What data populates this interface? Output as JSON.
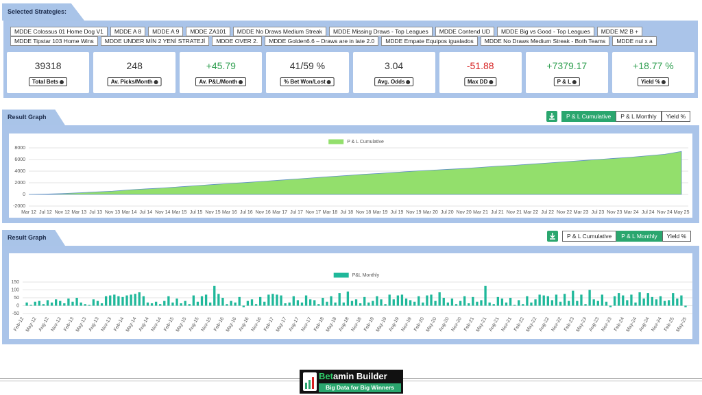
{
  "selected_strategies": {
    "title": "Selected Strategies:",
    "tag_rows": [
      [
        "MDDE Colossus 01 Home Dog V1",
        "MDDE A 8",
        "MDDE A 9",
        "MDDE ZA101",
        "MDDE No Draws Medium Streak",
        "MDDE Missing Draws - Top Leagues",
        "MDDE Contend UD",
        "MDDE Big vs Good - Top Leagues",
        "MDDE M2 B +"
      ],
      [
        "MDDE Tipstar 103 Home Wins",
        "MDDE UNDER MİN 2 YENİ STRATEJİ",
        "MDDE OVER 2.",
        "MDDE Golden6.6 – Draws are in late 2.0",
        "MDDE Empate Equipos igualados",
        "MDDE No Draws Medium Streak - Both Teams",
        "MDDE nul x a"
      ]
    ],
    "stats": [
      {
        "value": "39318",
        "label": "Total Bets",
        "color": "#333333"
      },
      {
        "value": "248",
        "label": "Av. Picks/Month",
        "color": "#333333"
      },
      {
        "value": "+45.79",
        "label": "Av. P&L/Month",
        "color": "#2e9e4f"
      },
      {
        "value": "41/59 %",
        "label": "% Bet Won/Lost",
        "color": "#333333"
      },
      {
        "value": "3.04",
        "label": "Avg. Odds",
        "color": "#333333"
      },
      {
        "value": "-51.88",
        "label": "Max DD",
        "color": "#d62020"
      },
      {
        "value": "+7379.17",
        "label": "P & L",
        "color": "#2e9e4f"
      },
      {
        "value": "+18.77 %",
        "label": "Yield %",
        "color": "#2e9e4f"
      }
    ]
  },
  "panels": [
    {
      "title": "Result Graph",
      "buttons": [
        {
          "text": "P & L Cumulative",
          "active": true
        },
        {
          "text": "P & L Monthly",
          "active": false
        },
        {
          "text": "Yield %",
          "active": false
        }
      ]
    },
    {
      "title": "Result Graph",
      "buttons": [
        {
          "text": "P & L Cumulative",
          "active": false
        },
        {
          "text": "P & L Monthly",
          "active": true
        },
        {
          "text": "Yield %",
          "active": false
        }
      ]
    }
  ],
  "chart_data": [
    {
      "type": "area",
      "categories": [
        "Mar 12",
        "Jul 12",
        "Nov 12",
        "Mar 13",
        "Jul 13",
        "Nov 13",
        "Mar 14",
        "Jul 14",
        "Nov 14",
        "Mar 15",
        "Jul 15",
        "Nov 15",
        "Mar 16",
        "Jul 16",
        "Nov 16",
        "Mar 17",
        "Jul 17",
        "Nov 17",
        "Mar 18",
        "Jul 18",
        "Nov 18",
        "Mar 19",
        "Jul 19",
        "Nov 19",
        "Mar 20",
        "Jul 20",
        "Nov 20",
        "Mar 21",
        "Jul 21",
        "Nov 21",
        "Mar 22",
        "Jul 22",
        "Nov 22",
        "Mar 23",
        "Jul 23",
        "Nov 23",
        "Mar 24",
        "Jul 24",
        "Nov 24",
        "May 25"
      ],
      "series": [
        {
          "name": "P & L Cumulative",
          "color": "#93df6c",
          "values": [
            0,
            60,
            150,
            280,
            420,
            560,
            780,
            950,
            1100,
            1300,
            1500,
            1700,
            1880,
            2050,
            2250,
            2450,
            2650,
            2850,
            3050,
            3250,
            3450,
            3620,
            3800,
            4000,
            4150,
            4300,
            4450,
            4650,
            4850,
            5000,
            5200,
            5400,
            5600,
            5800,
            6000,
            6200,
            6400,
            6650,
            6900,
            7379
          ]
        }
      ],
      "ylim": [
        -2000,
        8000
      ],
      "yticks": [
        -2000,
        0,
        2000,
        4000,
        6000,
        8000
      ],
      "grid": true
    },
    {
      "type": "bar",
      "categories": [
        "Feb-12",
        null,
        null,
        "May-12",
        null,
        null,
        "Aug-12",
        null,
        null,
        "Nov-12",
        null,
        null,
        "Feb-13",
        null,
        null,
        "May-13",
        null,
        null,
        "Aug-13",
        null,
        null,
        "Nov-13",
        null,
        null,
        "Feb-14",
        null,
        null,
        "May-14",
        null,
        null,
        "Aug-14",
        null,
        null,
        "Nov-14",
        null,
        null,
        "Feb-15",
        null,
        null,
        "May-15",
        null,
        null,
        "Aug-15",
        null,
        null,
        "Nov-15",
        null,
        null,
        "Feb-16",
        null,
        null,
        "May-16",
        null,
        null,
        "Aug-16",
        null,
        null,
        "Nov-16",
        null,
        null,
        "Feb-17",
        null,
        null,
        "May-17",
        null,
        null,
        "Aug-17",
        null,
        null,
        "Nov-17",
        null,
        null,
        "Feb-18",
        null,
        null,
        "May-18",
        null,
        null,
        "Aug-18",
        null,
        null,
        "Nov-18",
        null,
        null,
        "Feb-19",
        null,
        null,
        "May-19",
        null,
        null,
        "Aug-19",
        null,
        null,
        "Nov-19",
        null,
        null,
        "Feb-20",
        null,
        null,
        "May-20",
        null,
        null,
        "Aug-20",
        null,
        null,
        "Nov-20",
        null,
        null,
        "Feb-21",
        null,
        null,
        "May-21",
        null,
        null,
        "Aug-21",
        null,
        null,
        "Nov-21",
        null,
        null,
        "Feb-22",
        null,
        null,
        "May-22",
        null,
        null,
        "Aug-22",
        null,
        null,
        "Nov-22",
        null,
        null,
        "Feb-23",
        null,
        null,
        "May-23",
        null,
        null,
        "Aug-23",
        null,
        null,
        "Nov-23",
        null,
        null,
        "Feb-24",
        null,
        null,
        "May-24",
        null,
        null,
        "Aug-24",
        null,
        null,
        "Nov-24",
        null,
        null,
        "Feb-25",
        null,
        null,
        "May-25"
      ],
      "series": [
        {
          "name": "P&L Monthly",
          "color": "#1fb89a",
          "values": [
            0,
            20,
            5,
            25,
            30,
            10,
            35,
            20,
            40,
            30,
            15,
            45,
            25,
            50,
            20,
            10,
            5,
            40,
            30,
            15,
            60,
            65,
            70,
            60,
            55,
            65,
            70,
            75,
            85,
            60,
            20,
            15,
            25,
            10,
            30,
            60,
            20,
            45,
            15,
            30,
            10,
            65,
            25,
            60,
            70,
            20,
            125,
            75,
            50,
            10,
            30,
            20,
            55,
            -10,
            30,
            40,
            10,
            55,
            25,
            70,
            75,
            70,
            65,
            15,
            20,
            60,
            35,
            20,
            65,
            40,
            35,
            10,
            50,
            25,
            60,
            20,
            80,
            20,
            90,
            30,
            40,
            15,
            55,
            20,
            30,
            60,
            40,
            10,
            70,
            40,
            65,
            70,
            45,
            35,
            25,
            60,
            20,
            65,
            70,
            30,
            85,
            50,
            20,
            45,
            10,
            30,
            60,
            15,
            55,
            25,
            35,
            125,
            20,
            10,
            55,
            45,
            20,
            50,
            5,
            35,
            10,
            60,
            20,
            40,
            70,
            65,
            60,
            35,
            70,
            25,
            75,
            30,
            95,
            30,
            70,
            10,
            100,
            40,
            30,
            70,
            25,
            -10,
            60,
            80,
            65,
            35,
            70,
            20,
            85,
            45,
            80,
            55,
            40,
            60,
            30,
            35,
            80,
            45,
            65,
            -10
          ]
        }
      ],
      "ylim": [
        -50,
        150
      ],
      "yticks": [
        -50,
        0,
        50,
        100,
        150
      ],
      "grid": true
    }
  ],
  "footer": {
    "brand_accent": "Bet",
    "brand_rest": "amin Builder",
    "tagline": "Big Data for Big Winners"
  }
}
